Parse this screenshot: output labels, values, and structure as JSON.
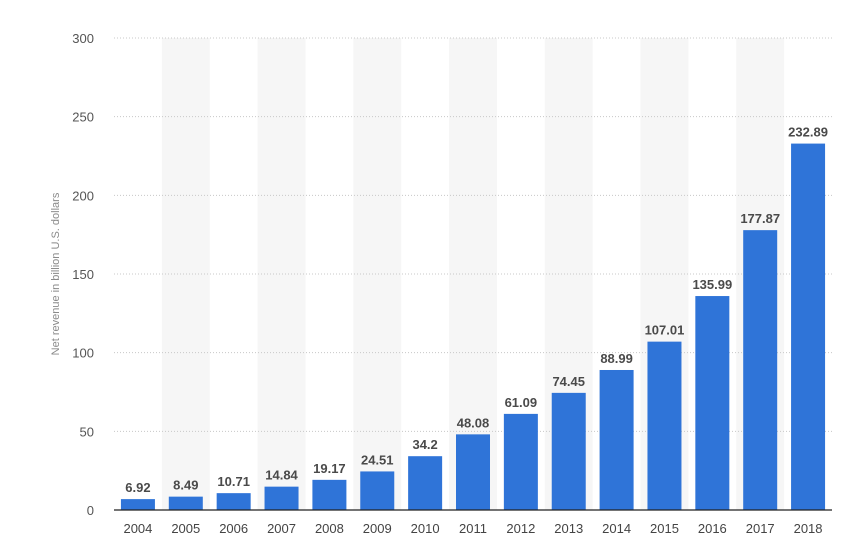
{
  "chart_data": {
    "type": "bar",
    "title": "",
    "xlabel": "",
    "ylabel": "Net revenue in billion U.S. dollars",
    "ylim": [
      0,
      300
    ],
    "yticks": [
      0,
      50,
      100,
      150,
      200,
      250,
      300
    ],
    "grid": true,
    "legend": "none",
    "categories": [
      "2004",
      "2005",
      "2006",
      "2007",
      "2008",
      "2009",
      "2010",
      "2011",
      "2012",
      "2013",
      "2014",
      "2015",
      "2016",
      "2017",
      "2018"
    ],
    "values": [
      6.92,
      8.49,
      10.71,
      14.84,
      19.17,
      24.51,
      34.2,
      48.08,
      61.09,
      74.45,
      88.99,
      107.01,
      135.99,
      177.87,
      232.89
    ],
    "value_labels": [
      "6.92",
      "8.49",
      "10.71",
      "14.84",
      "19.17",
      "24.51",
      "34.2",
      "48.08",
      "61.09",
      "74.45",
      "88.99",
      "107.01",
      "135.99",
      "177.87",
      "232.89"
    ],
    "bar_color": "#2f74d8",
    "band_color": "#f6f6f6"
  }
}
